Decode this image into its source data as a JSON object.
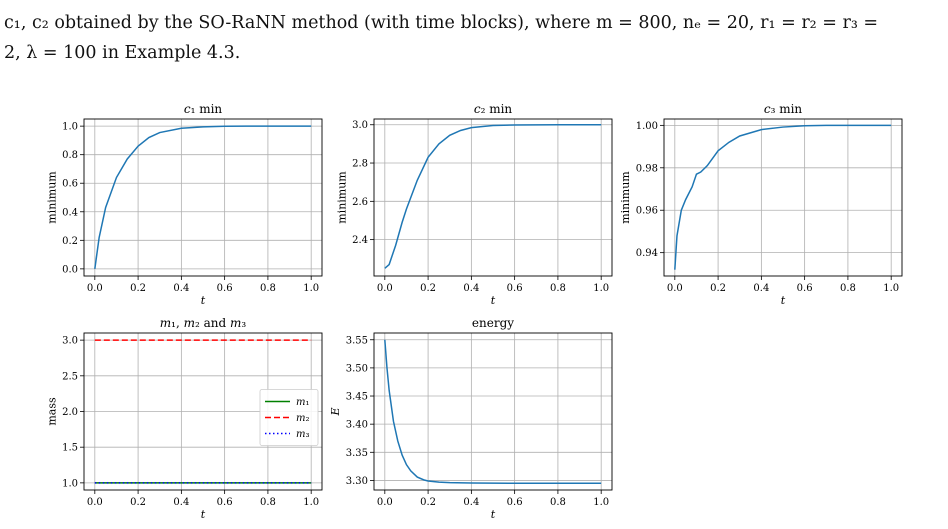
{
  "caption": {
    "line1": "c₁, c₂ obtained by the SO-RaNN method (with time blocks), where  m = 800,  nₑ = 20,  r₁ = r₂ = r₃ =",
    "line2": "2,  λ = 100 in Example 4.3."
  },
  "chart_data": [
    {
      "id": "c1",
      "type": "line",
      "title": "c1 min",
      "xlabel": "t",
      "ylabel": "minimum",
      "xlim": [
        -0.05,
        1.05
      ],
      "ylim": [
        -0.05,
        1.05
      ],
      "xticks": [
        0.0,
        0.2,
        0.4,
        0.6,
        0.8,
        1.0
      ],
      "yticks": [
        0.0,
        0.2,
        0.4,
        0.6,
        0.8,
        1.0
      ],
      "xtick_labels": [
        "0.0",
        "0.2",
        "0.4",
        "0.6",
        "0.8",
        "1.0"
      ],
      "ytick_labels": [
        "0.0",
        "0.2",
        "0.4",
        "0.6",
        "0.8",
        "1.0"
      ],
      "grid": true,
      "series": [
        {
          "color": "#1f77b4",
          "style": "solid",
          "x": [
            0.0,
            0.02,
            0.05,
            0.1,
            0.15,
            0.2,
            0.25,
            0.3,
            0.4,
            0.5,
            0.6,
            0.7,
            0.8,
            0.9,
            1.0
          ],
          "y": [
            0.0,
            0.22,
            0.43,
            0.64,
            0.77,
            0.86,
            0.92,
            0.955,
            0.985,
            0.995,
            0.999,
            1.0,
            1.0,
            1.0,
            1.0
          ]
        }
      ]
    },
    {
      "id": "c2",
      "type": "line",
      "title": "c2 min",
      "xlabel": "t",
      "ylabel": "minimum",
      "xlim": [
        -0.05,
        1.05
      ],
      "ylim": [
        2.21,
        3.03
      ],
      "xticks": [
        0.0,
        0.2,
        0.4,
        0.6,
        0.8,
        1.0
      ],
      "yticks": [
        2.4,
        2.6,
        2.8,
        3.0
      ],
      "xtick_labels": [
        "0.0",
        "0.2",
        "0.4",
        "0.6",
        "0.8",
        "1.0"
      ],
      "ytick_labels": [
        "2.4",
        "2.6",
        "2.8",
        "3.0"
      ],
      "grid": true,
      "series": [
        {
          "color": "#1f77b4",
          "style": "solid",
          "x": [
            0.0,
            0.02,
            0.05,
            0.08,
            0.1,
            0.15,
            0.2,
            0.25,
            0.3,
            0.35,
            0.4,
            0.5,
            0.6,
            0.8,
            1.0
          ],
          "y": [
            2.25,
            2.27,
            2.37,
            2.49,
            2.56,
            2.71,
            2.83,
            2.9,
            2.945,
            2.97,
            2.985,
            2.996,
            2.999,
            3.0,
            3.0
          ]
        }
      ]
    },
    {
      "id": "c3",
      "type": "line",
      "title": "c3 min",
      "xlabel": "t",
      "ylabel": "minimum",
      "xlim": [
        -0.05,
        1.05
      ],
      "ylim": [
        0.929,
        1.003
      ],
      "xticks": [
        0.0,
        0.2,
        0.4,
        0.6,
        0.8,
        1.0
      ],
      "yticks": [
        0.94,
        0.96,
        0.98,
        1.0
      ],
      "xtick_labels": [
        "0.0",
        "0.2",
        "0.4",
        "0.6",
        "0.8",
        "1.0"
      ],
      "ytick_labels": [
        "0.94",
        "0.96",
        "0.98",
        "1.00"
      ],
      "grid": true,
      "series": [
        {
          "color": "#1f77b4",
          "style": "solid",
          "x": [
            0.0,
            0.01,
            0.03,
            0.05,
            0.08,
            0.1,
            0.12,
            0.15,
            0.2,
            0.25,
            0.3,
            0.4,
            0.5,
            0.6,
            0.7,
            0.8,
            1.0
          ],
          "y": [
            0.932,
            0.948,
            0.96,
            0.965,
            0.971,
            0.977,
            0.978,
            0.981,
            0.988,
            0.992,
            0.995,
            0.998,
            0.9992,
            0.9998,
            1.0,
            1.0,
            1.0
          ]
        }
      ]
    },
    {
      "id": "mass",
      "type": "line",
      "title": "m1, m2 and m3",
      "xlabel": "t",
      "ylabel": "mass",
      "xlim": [
        -0.05,
        1.05
      ],
      "ylim": [
        0.9,
        3.1
      ],
      "xticks": [
        0.0,
        0.2,
        0.4,
        0.6,
        0.8,
        1.0
      ],
      "yticks": [
        1.0,
        1.5,
        2.0,
        2.5,
        3.0
      ],
      "xtick_labels": [
        "0.0",
        "0.2",
        "0.4",
        "0.6",
        "0.8",
        "1.0"
      ],
      "ytick_labels": [
        "1.0",
        "1.5",
        "2.0",
        "2.5",
        "3.0"
      ],
      "grid": true,
      "legend": "center-right",
      "series": [
        {
          "name": "m1",
          "color": "#008000",
          "style": "solid",
          "x": [
            0.0,
            1.0
          ],
          "y": [
            1.0,
            1.0
          ]
        },
        {
          "name": "m2",
          "color": "#ff0000",
          "style": "dashed",
          "x": [
            0.0,
            1.0
          ],
          "y": [
            3.0,
            3.0
          ]
        },
        {
          "name": "m3",
          "color": "#0000ff",
          "style": "dotted",
          "x": [
            0.0,
            1.0
          ],
          "y": [
            1.0,
            1.0
          ]
        }
      ]
    },
    {
      "id": "energy",
      "type": "line",
      "title": "energy",
      "xlabel": "t",
      "ylabel": "E",
      "xlim": [
        -0.05,
        1.05
      ],
      "ylim": [
        3.283,
        3.562
      ],
      "xticks": [
        0.0,
        0.2,
        0.4,
        0.6,
        0.8,
        1.0
      ],
      "yticks": [
        3.3,
        3.35,
        3.4,
        3.45,
        3.5,
        3.55
      ],
      "xtick_labels": [
        "0.0",
        "0.2",
        "0.4",
        "0.6",
        "0.8",
        "1.0"
      ],
      "ytick_labels": [
        "3.30",
        "3.35",
        "3.40",
        "3.45",
        "3.50",
        "3.55"
      ],
      "grid": true,
      "series": [
        {
          "color": "#1f77b4",
          "style": "solid",
          "x": [
            0.0,
            0.01,
            0.02,
            0.04,
            0.06,
            0.08,
            0.1,
            0.12,
            0.15,
            0.18,
            0.2,
            0.25,
            0.3,
            0.4,
            0.6,
            0.8,
            1.0
          ],
          "y": [
            3.55,
            3.5,
            3.46,
            3.405,
            3.37,
            3.345,
            3.328,
            3.317,
            3.306,
            3.301,
            3.299,
            3.297,
            3.296,
            3.2955,
            3.295,
            3.295,
            3.295
          ]
        }
      ]
    }
  ]
}
